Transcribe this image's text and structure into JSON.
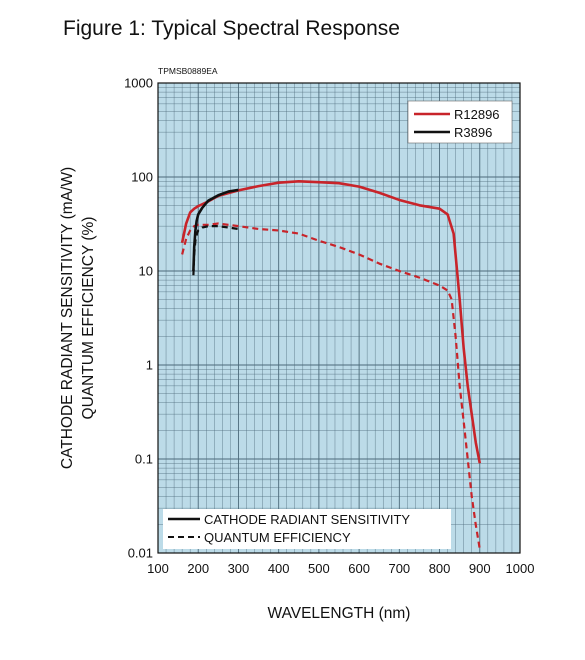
{
  "figure_title": "Figure 1: Typical Spectral Response",
  "figure_code": "TPMSB0889EA",
  "colors": {
    "plot_bg": "#bcdbe8",
    "red": "#c8242a",
    "black": "#111111",
    "grid": "#4c6a7a"
  },
  "chart_data": {
    "type": "line",
    "xlabel": "WAVELENGTH (nm)",
    "ylabel_lines": [
      "CATHODE RADIANT SENSITIVITY (mA/W)",
      "QUANTUM EFFICIENCY (%)"
    ],
    "xlim": [
      100,
      1000
    ],
    "ylim": [
      0.01,
      1000
    ],
    "yscale": "log",
    "grid": true,
    "x_ticks": [
      "100",
      "200",
      "300",
      "400",
      "500",
      "600",
      "700",
      "800",
      "900",
      "1000"
    ],
    "y_ticks": [
      "0.01",
      "0.1",
      "1",
      "10",
      "100",
      "1000"
    ],
    "legend_models": [
      {
        "name": "R12896",
        "color": "#c8242a"
      },
      {
        "name": "R3896",
        "color": "#111111"
      }
    ],
    "legend_styles": [
      {
        "name": "CATHODE RADIANT SENSITIVITY",
        "dash": false
      },
      {
        "name": "QUANTUM EFFICIENCY",
        "dash": true
      }
    ],
    "series": [
      {
        "name": "R12896",
        "measure": "CATHODE RADIANT SENSITIVITY",
        "color": "#c8242a",
        "dash": false,
        "x": [
          160,
          170,
          180,
          190,
          200,
          225,
          250,
          300,
          350,
          400,
          450,
          500,
          550,
          600,
          650,
          700,
          750,
          800,
          820,
          835,
          850,
          860,
          870,
          880,
          890,
          900
        ],
        "y": [
          20,
          32,
          42,
          46,
          49,
          55,
          63,
          72,
          80,
          87,
          90,
          88,
          86,
          79,
          68,
          57,
          50,
          46,
          40,
          25,
          5,
          1.5,
          0.6,
          0.3,
          0.15,
          0.09
        ]
      },
      {
        "name": "R12896",
        "measure": "QUANTUM EFFICIENCY",
        "color": "#c8242a",
        "dash": true,
        "x": [
          160,
          170,
          180,
          190,
          200,
          225,
          250,
          300,
          350,
          400,
          450,
          500,
          550,
          600,
          650,
          700,
          750,
          800,
          820,
          830,
          840,
          850,
          860,
          870,
          880,
          890,
          900
        ],
        "y": [
          15,
          22,
          27,
          30,
          31,
          31,
          32,
          30,
          28,
          27,
          25,
          21,
          18,
          15,
          12,
          10,
          8.5,
          7,
          6.2,
          5,
          2,
          0.6,
          0.25,
          0.1,
          0.04,
          0.02,
          0.011
        ]
      },
      {
        "name": "R3896",
        "measure": "CATHODE RADIANT SENSITIVITY",
        "color": "#111111",
        "dash": false,
        "x": [
          188,
          190,
          193,
          196,
          200,
          210,
          225,
          250,
          275,
          300
        ],
        "y": [
          10,
          18,
          27,
          34,
          40,
          47,
          56,
          64,
          70,
          73
        ]
      },
      {
        "name": "R3896",
        "measure": "QUANTUM EFFICIENCY",
        "color": "#111111",
        "dash": true,
        "x": [
          188,
          190,
          193,
          197,
          200,
          210,
          225,
          250,
          275,
          300
        ],
        "y": [
          9,
          15,
          21,
          25,
          27,
          29,
          30,
          30,
          29,
          28
        ]
      }
    ]
  }
}
